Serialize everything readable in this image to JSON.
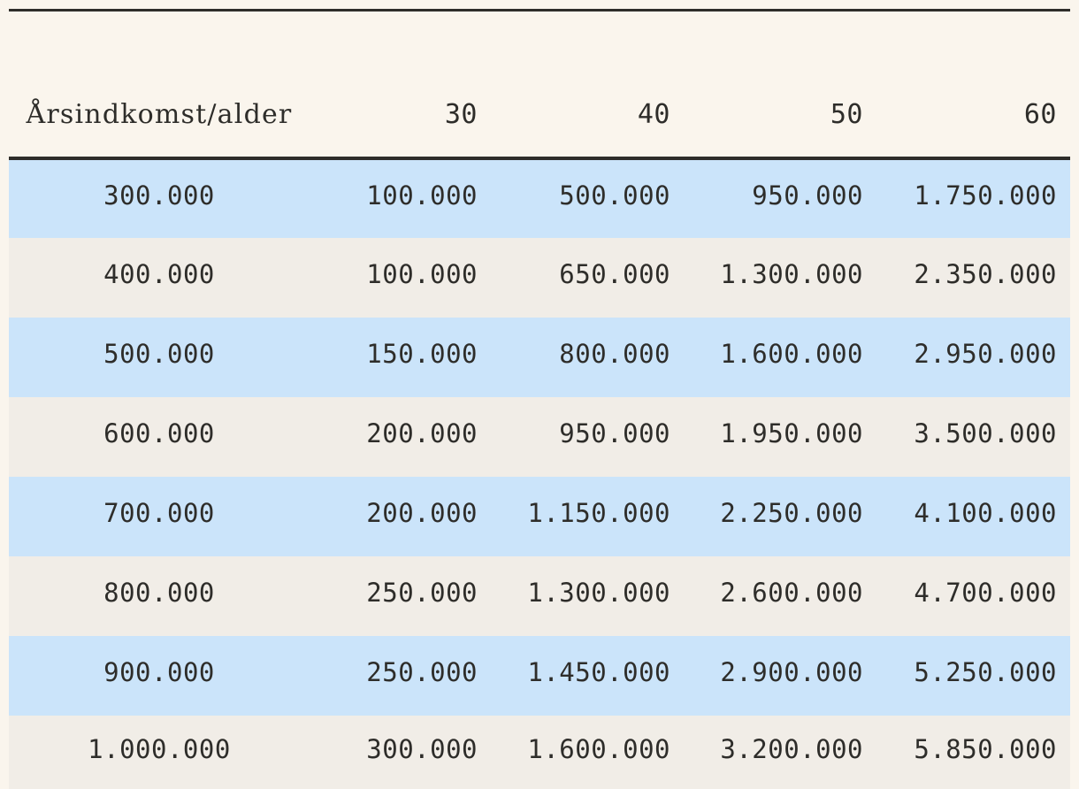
{
  "page": {
    "background_color": "#faf5ed",
    "text_color": "#2e2d2a",
    "row_blue_color": "#cbe4fa",
    "row_beige_color": "#f1ede7",
    "rule_color": "#2e2d2a",
    "scrollbar_color": "#8a8881"
  },
  "table": {
    "header": {
      "label": "Årsindkomst/alder",
      "columns": [
        "30",
        "40",
        "50",
        "60"
      ]
    },
    "rows": [
      {
        "income": "300.000",
        "values": [
          "100.000",
          "500.000",
          "950.000",
          "1.750.000"
        ]
      },
      {
        "income": "400.000",
        "values": [
          "100.000",
          "650.000",
          "1.300.000",
          "2.350.000"
        ]
      },
      {
        "income": "500.000",
        "values": [
          "150.000",
          "800.000",
          "1.600.000",
          "2.950.000"
        ]
      },
      {
        "income": "600.000",
        "values": [
          "200.000",
          "950.000",
          "1.950.000",
          "3.500.000"
        ]
      },
      {
        "income": "700.000",
        "values": [
          "200.000",
          "1.150.000",
          "2.250.000",
          "4.100.000"
        ]
      },
      {
        "income": "800.000",
        "values": [
          "250.000",
          "1.300.000",
          "2.600.000",
          "4.700.000"
        ]
      },
      {
        "income": "900.000",
        "values": [
          "250.000",
          "1.450.000",
          "2.900.000",
          "5.250.000"
        ]
      },
      {
        "income": "1.000.000",
        "values": [
          "300.000",
          "1.600.000",
          "3.200.000",
          "5.850.000"
        ]
      }
    ]
  },
  "chart_data": {
    "type": "table",
    "title": "Årsindkomst/alder",
    "categories": [
      "30",
      "40",
      "50",
      "60"
    ],
    "row_labels": [
      300000,
      400000,
      500000,
      600000,
      700000,
      800000,
      900000,
      1000000
    ],
    "series": [
      {
        "name": "30",
        "values": [
          100000,
          100000,
          150000,
          200000,
          200000,
          250000,
          250000,
          300000
        ]
      },
      {
        "name": "40",
        "values": [
          500000,
          650000,
          800000,
          950000,
          1150000,
          1300000,
          1450000,
          1600000
        ]
      },
      {
        "name": "50",
        "values": [
          950000,
          1300000,
          1600000,
          1950000,
          2250000,
          2600000,
          2900000,
          3200000
        ]
      },
      {
        "name": "60",
        "values": [
          1750000,
          2350000,
          2950000,
          3500000,
          4100000,
          4700000,
          5250000,
          5850000
        ]
      }
    ]
  }
}
